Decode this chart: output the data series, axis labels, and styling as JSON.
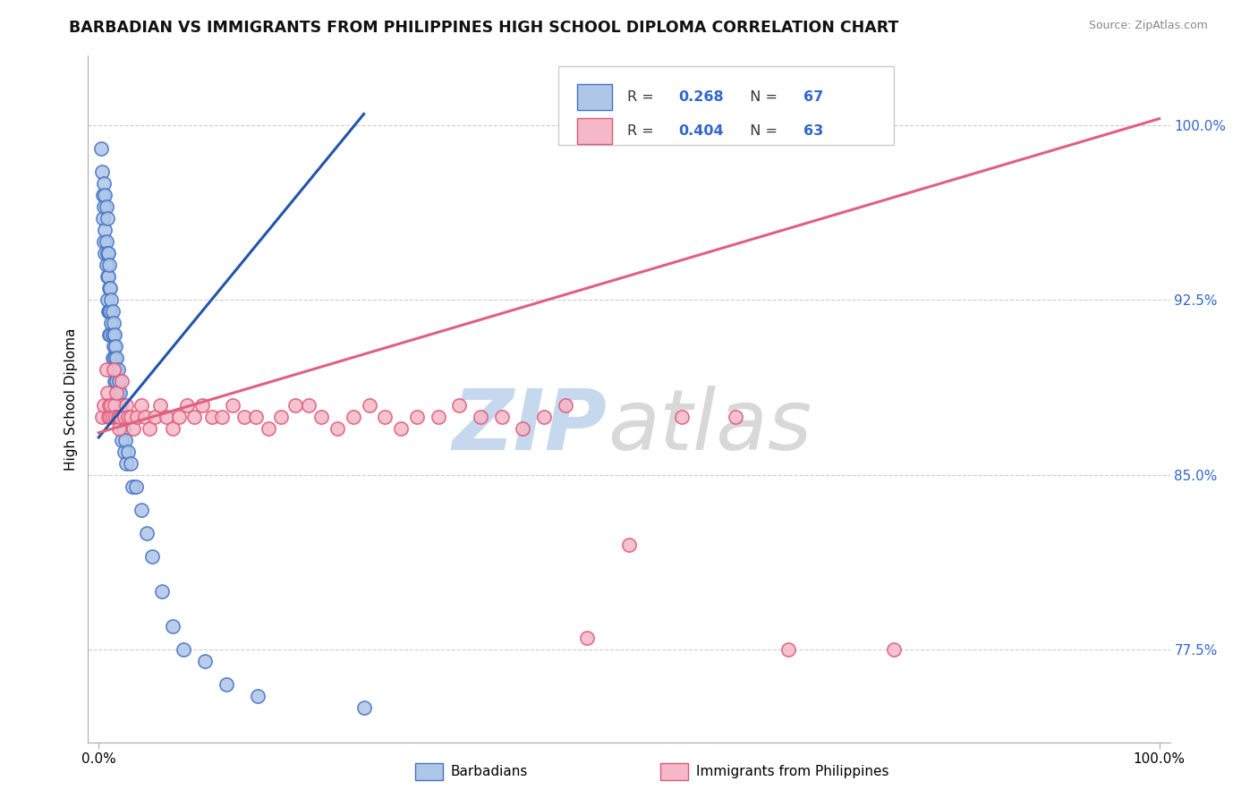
{
  "title": "BARBADIAN VS IMMIGRANTS FROM PHILIPPINES HIGH SCHOOL DIPLOMA CORRELATION CHART",
  "source": "Source: ZipAtlas.com",
  "ylabel": "High School Diploma",
  "ylabel_right_ticks": [
    "77.5%",
    "85.0%",
    "92.5%",
    "100.0%"
  ],
  "ylabel_right_values": [
    0.775,
    0.85,
    0.925,
    1.0
  ],
  "xlim": [
    0.0,
    1.0
  ],
  "ylim": [
    0.735,
    1.03
  ],
  "r_barbadian": "0.268",
  "n_barbadian": "67",
  "r_philippines": "0.404",
  "n_philippines": "63",
  "color_barbadian_fill": "#aec6e8",
  "color_barbadian_edge": "#4472c4",
  "color_philippines_fill": "#f4b8c8",
  "color_philippines_edge": "#e05878",
  "color_blue_line": "#2255aa",
  "color_pink_line": "#e06080",
  "color_blue_text": "#3366cc",
  "watermark_zip_color": "#c5d8ee",
  "watermark_atlas_color": "#d8d8d8",
  "barb_x": [
    0.002,
    0.003,
    0.004,
    0.004,
    0.005,
    0.005,
    0.005,
    0.006,
    0.006,
    0.006,
    0.007,
    0.007,
    0.007,
    0.008,
    0.008,
    0.008,
    0.008,
    0.009,
    0.009,
    0.009,
    0.01,
    0.01,
    0.01,
    0.01,
    0.011,
    0.011,
    0.011,
    0.012,
    0.012,
    0.013,
    0.013,
    0.013,
    0.014,
    0.014,
    0.015,
    0.015,
    0.015,
    0.016,
    0.016,
    0.017,
    0.017,
    0.018,
    0.018,
    0.019,
    0.019,
    0.02,
    0.021,
    0.022,
    0.022,
    0.023,
    0.024,
    0.025,
    0.026,
    0.028,
    0.03,
    0.032,
    0.035,
    0.04,
    0.045,
    0.05,
    0.06,
    0.07,
    0.08,
    0.1,
    0.12,
    0.15,
    0.25
  ],
  "barb_y": [
    0.99,
    0.98,
    0.97,
    0.96,
    0.975,
    0.965,
    0.95,
    0.97,
    0.955,
    0.945,
    0.965,
    0.95,
    0.94,
    0.96,
    0.945,
    0.935,
    0.925,
    0.945,
    0.935,
    0.92,
    0.94,
    0.93,
    0.92,
    0.91,
    0.93,
    0.92,
    0.91,
    0.925,
    0.915,
    0.92,
    0.91,
    0.9,
    0.915,
    0.905,
    0.91,
    0.9,
    0.89,
    0.905,
    0.895,
    0.9,
    0.89,
    0.895,
    0.885,
    0.89,
    0.88,
    0.885,
    0.88,
    0.875,
    0.865,
    0.87,
    0.86,
    0.865,
    0.855,
    0.86,
    0.855,
    0.845,
    0.845,
    0.835,
    0.825,
    0.815,
    0.8,
    0.785,
    0.775,
    0.77,
    0.76,
    0.755,
    0.75
  ],
  "phil_x": [
    0.003,
    0.005,
    0.007,
    0.008,
    0.009,
    0.01,
    0.011,
    0.012,
    0.013,
    0.014,
    0.015,
    0.016,
    0.017,
    0.018,
    0.019,
    0.02,
    0.022,
    0.024,
    0.026,
    0.028,
    0.03,
    0.033,
    0.036,
    0.04,
    0.044,
    0.048,
    0.053,
    0.058,
    0.064,
    0.07,
    0.076,
    0.083,
    0.09,
    0.098,
    0.107,
    0.116,
    0.126,
    0.137,
    0.148,
    0.16,
    0.172,
    0.185,
    0.198,
    0.21,
    0.225,
    0.24,
    0.255,
    0.27,
    0.285,
    0.3,
    0.32,
    0.34,
    0.36,
    0.38,
    0.4,
    0.42,
    0.44,
    0.46,
    0.5,
    0.55,
    0.6,
    0.65,
    0.75
  ],
  "phil_y": [
    0.875,
    0.88,
    0.895,
    0.885,
    0.875,
    0.88,
    0.875,
    0.88,
    0.875,
    0.895,
    0.88,
    0.875,
    0.885,
    0.875,
    0.87,
    0.875,
    0.89,
    0.875,
    0.88,
    0.875,
    0.875,
    0.87,
    0.875,
    0.88,
    0.875,
    0.87,
    0.875,
    0.88,
    0.875,
    0.87,
    0.875,
    0.88,
    0.875,
    0.88,
    0.875,
    0.875,
    0.88,
    0.875,
    0.875,
    0.87,
    0.875,
    0.88,
    0.88,
    0.875,
    0.87,
    0.875,
    0.88,
    0.875,
    0.87,
    0.875,
    0.875,
    0.88,
    0.875,
    0.875,
    0.87,
    0.875,
    0.88,
    0.78,
    0.82,
    0.875,
    0.875,
    0.775,
    0.775
  ],
  "blue_line_x": [
    0.0,
    0.25
  ],
  "blue_line_y": [
    0.866,
    1.005
  ],
  "pink_line_x": [
    0.0,
    1.0
  ],
  "pink_line_y": [
    0.868,
    1.003
  ]
}
